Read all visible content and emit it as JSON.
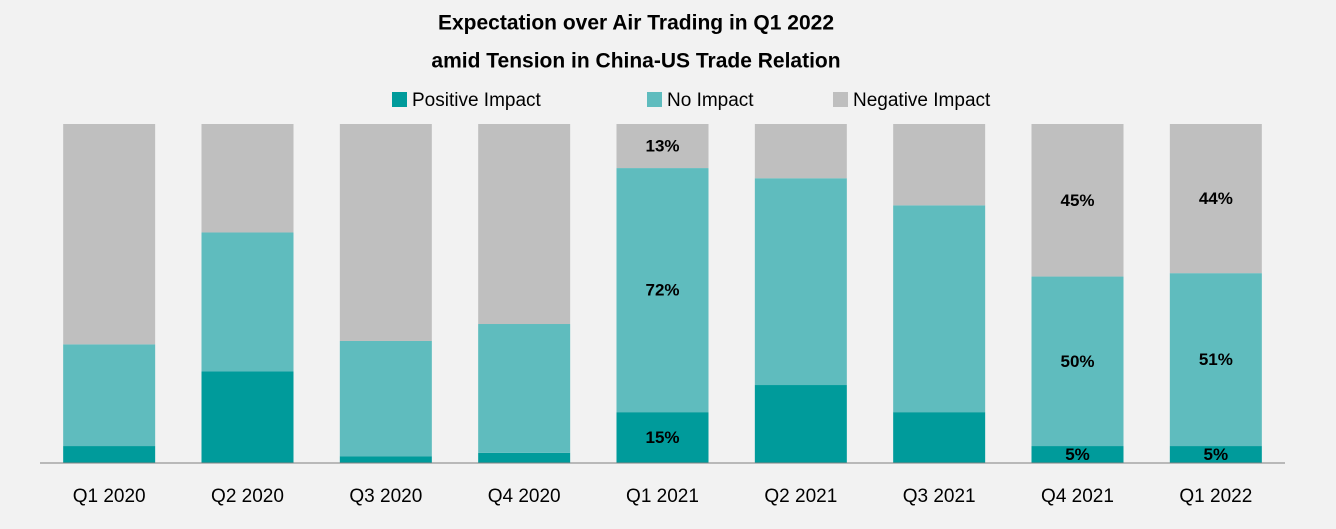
{
  "chart_data": {
    "type": "stacked_bar_100",
    "title": [
      "Expectation over Air Trading in Q1 2022",
      "amid Tension in China-US Trade Relation"
    ],
    "categories": [
      "Q1 2020",
      "Q2 2020",
      "Q3 2020",
      "Q4 2020",
      "Q1 2021",
      "Q2 2021",
      "Q3 2021",
      "Q4 2021",
      "Q1 2022"
    ],
    "series": [
      {
        "name": "Positive Impact",
        "color": "#009b9b",
        "values": [
          5,
          27,
          2,
          3,
          15,
          23,
          15,
          5,
          5
        ],
        "value_labels": [
          null,
          null,
          null,
          null,
          "15%",
          null,
          null,
          "5%",
          "5%"
        ]
      },
      {
        "name": "No Impact",
        "color": "#5fbcbe",
        "values": [
          30,
          41,
          34,
          38,
          72,
          61,
          61,
          50,
          51
        ],
        "value_labels": [
          null,
          null,
          null,
          null,
          "72%",
          null,
          null,
          "50%",
          "51%"
        ]
      },
      {
        "name": "Negative Impact",
        "color": "#bfbfbf",
        "values": [
          65,
          32,
          64,
          59,
          13,
          16,
          24,
          45,
          44
        ],
        "value_labels": [
          null,
          null,
          null,
          null,
          "13%",
          null,
          null,
          "45%",
          "44%"
        ]
      }
    ],
    "legend": "top"
  }
}
